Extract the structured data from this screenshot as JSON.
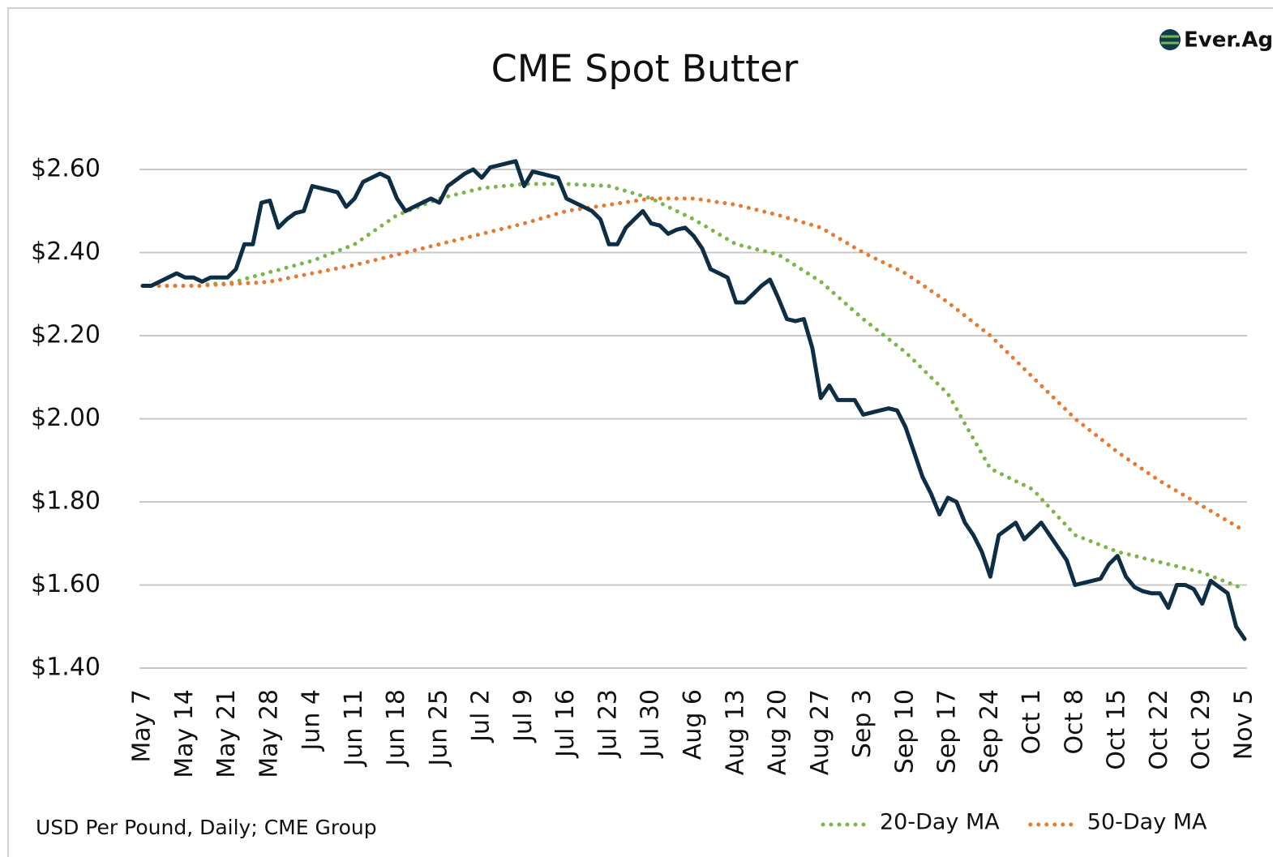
{
  "logo": "Ever.Ag",
  "chart_data": {
    "type": "line",
    "title": "CME Spot Butter",
    "source": "USD Per Pound, Daily; CME Group",
    "categories": [
      "May 7",
      null,
      null,
      null,
      null,
      "May 14",
      null,
      null,
      null,
      null,
      "May 21",
      null,
      null,
      null,
      null,
      "May 28",
      null,
      null,
      null,
      null,
      "Jun 4",
      null,
      null,
      null,
      null,
      "Jun 11",
      null,
      null,
      null,
      null,
      "Jun 18",
      null,
      null,
      null,
      null,
      "Jun 25",
      null,
      null,
      null,
      null,
      "Jul 2",
      null,
      null,
      null,
      null,
      "Jul 9",
      null,
      null,
      null,
      null,
      "Jul 16",
      null,
      null,
      null,
      null,
      "Jul 23",
      null,
      null,
      null,
      null,
      "Jul 30",
      null,
      null,
      null,
      null,
      "Aug 6",
      null,
      null,
      null,
      null,
      "Aug 13",
      null,
      null,
      null,
      null,
      "Aug 20",
      null,
      null,
      null,
      null,
      "Aug 27",
      null,
      null,
      null,
      null,
      "Sep 3",
      null,
      null,
      null,
      null,
      "Sep 10",
      null,
      null,
      null,
      null,
      "Sep 17",
      null,
      null,
      null,
      null,
      "Sep 24",
      null,
      null,
      null,
      null,
      "Oct 1",
      null,
      null,
      null,
      null,
      "Oct 8",
      null,
      null,
      null,
      null,
      "Oct 15",
      null,
      null,
      null,
      null,
      "Oct 22",
      null,
      null,
      null,
      null,
      "Oct 29",
      null,
      null,
      null,
      null,
      "Nov 5"
    ],
    "series": [
      {
        "color": "#0d2e44",
        "style": "solid",
        "values": [
          2.32,
          2.32,
          2.33,
          2.34,
          2.35,
          2.34,
          2.34,
          2.33,
          2.34,
          2.34,
          2.34,
          2.36,
          2.42,
          2.42,
          2.52,
          2.525,
          2.46,
          2.48,
          2.495,
          2.5,
          2.56,
          2.555,
          2.55,
          2.545,
          2.51,
          2.53,
          2.57,
          2.58,
          2.59,
          2.58,
          2.53,
          2.5,
          2.51,
          2.52,
          2.53,
          2.52,
          2.56,
          2.575,
          2.59,
          2.6,
          2.58,
          2.605,
          2.61,
          2.615,
          2.62,
          2.56,
          2.595,
          2.59,
          2.585,
          2.58,
          2.53,
          2.52,
          2.51,
          2.5,
          2.48,
          2.42,
          2.42,
          2.46,
          2.48,
          2.5,
          2.47,
          2.465,
          2.445,
          2.455,
          2.46,
          2.44,
          2.41,
          2.36,
          2.35,
          2.34,
          2.28,
          2.28,
          2.3,
          2.32,
          2.335,
          2.29,
          2.24,
          2.235,
          2.24,
          2.17,
          2.05,
          2.08,
          2.045,
          2.045,
          2.045,
          2.01,
          2.015,
          2.02,
          2.025,
          2.02,
          1.98,
          1.92,
          1.86,
          1.82,
          1.77,
          1.81,
          1.8,
          1.75,
          1.72,
          1.68,
          1.62,
          1.72,
          1.735,
          1.75,
          1.71,
          1.73,
          1.75,
          1.72,
          1.69,
          1.66,
          1.6,
          1.605,
          1.61,
          1.615,
          1.65,
          1.67,
          1.62,
          1.595,
          1.585,
          1.58,
          1.58,
          1.545,
          1.6,
          1.6,
          1.59,
          1.555,
          1.61,
          1.595,
          1.58,
          1.5,
          1.47
        ]
      },
      {
        "name": "20-Day MA",
        "color": "#7ab648",
        "style": "dotted",
        "values": [
          2.32,
          2.32,
          2.32,
          2.32,
          2.32,
          2.32,
          2.32,
          2.32,
          2.325,
          2.325,
          2.325,
          2.33,
          2.336,
          2.342,
          2.347,
          2.353,
          2.358,
          2.364,
          2.369,
          2.375,
          2.38,
          2.388,
          2.396,
          2.404,
          2.412,
          2.42,
          2.434,
          2.448,
          2.462,
          2.476,
          2.49,
          2.498,
          2.506,
          2.514,
          2.522,
          2.53,
          2.535,
          2.54,
          2.545,
          2.55,
          2.555,
          2.557,
          2.559,
          2.561,
          2.563,
          2.565,
          2.565,
          2.565,
          2.565,
          2.565,
          2.565,
          2.564,
          2.563,
          2.562,
          2.561,
          2.56,
          2.554,
          2.548,
          2.542,
          2.536,
          2.53,
          2.52,
          2.51,
          2.5,
          2.49,
          2.48,
          2.468,
          2.456,
          2.444,
          2.432,
          2.42,
          2.415,
          2.41,
          2.405,
          2.4,
          2.395,
          2.382,
          2.369,
          2.356,
          2.343,
          2.33,
          2.312,
          2.294,
          2.276,
          2.258,
          2.24,
          2.224,
          2.208,
          2.192,
          2.176,
          2.16,
          2.14,
          2.12,
          2.1,
          2.08,
          2.06,
          2.024,
          1.988,
          1.952,
          1.916,
          1.88,
          1.87,
          1.86,
          1.85,
          1.84,
          1.83,
          1.808,
          1.786,
          1.764,
          1.742,
          1.72,
          1.712,
          1.704,
          1.696,
          1.688,
          1.68,
          1.675,
          1.67,
          1.665,
          1.66,
          1.655,
          1.65,
          1.645,
          1.64,
          1.635,
          1.63,
          1.622,
          1.614,
          1.606,
          1.598,
          1.59
        ]
      },
      {
        "name": "50-Day MA",
        "color": "#e8792f",
        "style": "dotted",
        "values": [
          2.32,
          2.32,
          2.32,
          2.32,
          2.32,
          2.32,
          2.32,
          2.32,
          2.322,
          2.323,
          2.324,
          2.325,
          2.326,
          2.327,
          2.328,
          2.33,
          2.334,
          2.338,
          2.342,
          2.346,
          2.35,
          2.354,
          2.358,
          2.362,
          2.366,
          2.37,
          2.375,
          2.38,
          2.385,
          2.39,
          2.395,
          2.4,
          2.405,
          2.41,
          2.415,
          2.42,
          2.425,
          2.43,
          2.435,
          2.44,
          2.445,
          2.45,
          2.455,
          2.46,
          2.465,
          2.47,
          2.476,
          2.482,
          2.488,
          2.494,
          2.5,
          2.503,
          2.506,
          2.509,
          2.512,
          2.515,
          2.518,
          2.521,
          2.524,
          2.527,
          2.53,
          2.53,
          2.53,
          2.53,
          2.53,
          2.53,
          2.527,
          2.524,
          2.521,
          2.518,
          2.515,
          2.51,
          2.505,
          2.5,
          2.495,
          2.49,
          2.484,
          2.478,
          2.472,
          2.466,
          2.46,
          2.448,
          2.436,
          2.424,
          2.412,
          2.4,
          2.39,
          2.38,
          2.37,
          2.36,
          2.35,
          2.336,
          2.322,
          2.308,
          2.294,
          2.28,
          2.264,
          2.248,
          2.232,
          2.216,
          2.2,
          2.18,
          2.16,
          2.14,
          2.12,
          2.1,
          2.08,
          2.06,
          2.04,
          2.02,
          2.0,
          1.984,
          1.968,
          1.952,
          1.936,
          1.92,
          1.906,
          1.892,
          1.878,
          1.864,
          1.85,
          1.838,
          1.826,
          1.814,
          1.802,
          1.79,
          1.778,
          1.766,
          1.754,
          1.742,
          1.73
        ]
      }
    ],
    "ylim": [
      1.4,
      2.6
    ],
    "yticks": [
      {
        "value": 1.4,
        "label": "$1.40"
      },
      {
        "value": 1.6,
        "label": "$1.60"
      },
      {
        "value": 1.8,
        "label": "$1.80"
      },
      {
        "value": 2.0,
        "label": "$2.00"
      },
      {
        "value": 2.2,
        "label": "$2.20"
      },
      {
        "value": 2.4,
        "label": "$2.40"
      },
      {
        "value": 2.6,
        "label": "$2.60"
      }
    ],
    "grid": true,
    "legend": "bottom-right"
  }
}
